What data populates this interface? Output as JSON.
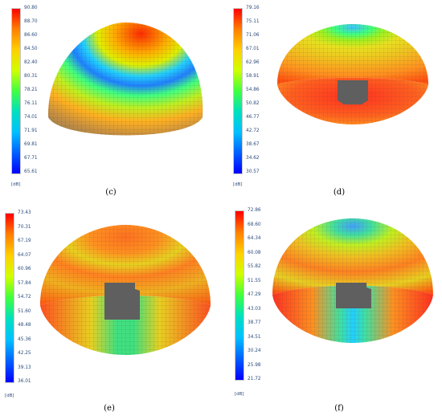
{
  "panels": [
    {
      "id": "c",
      "caption": "(c)",
      "unit": "[dB]",
      "ticks": [
        "90.80",
        "88.70",
        "86.60",
        "84.50",
        "82.40",
        "80.31",
        "78.21",
        "76.11",
        "74.01",
        "71.91",
        "69.81",
        "67.71",
        "65.61"
      ]
    },
    {
      "id": "d",
      "caption": "(d)",
      "unit": "[dB]",
      "ticks": [
        "79.16",
        "75.11",
        "71.06",
        "67.01",
        "62.96",
        "58.91",
        "54.86",
        "50.82",
        "46.77",
        "42.72",
        "38.67",
        "34.62",
        "30.57"
      ]
    },
    {
      "id": "e",
      "caption": "(e)",
      "unit": "[dB]",
      "ticks": [
        "73.43",
        "70.31",
        "67.19",
        "64.07",
        "60.96",
        "57.84",
        "54.72",
        "51.60",
        "48.48",
        "45.36",
        "42.25",
        "39.13",
        "36.01"
      ]
    },
    {
      "id": "f",
      "caption": "(f)",
      "unit": "[dB]",
      "ticks": [
        "72.86",
        "68.60",
        "64.34",
        "60.08",
        "55.82",
        "51.55",
        "47.29",
        "43.03",
        "38.77",
        "34.51",
        "30.24",
        "25.98",
        "21.72"
      ]
    }
  ],
  "colormap": {
    "top": "#ff0000",
    "stops": [
      "#ff0000",
      "#ff8000",
      "#ffd000",
      "#d0ff00",
      "#40ff40",
      "#00e0c0",
      "#00c0ff",
      "#0060ff",
      "#0000ff"
    ]
  }
}
